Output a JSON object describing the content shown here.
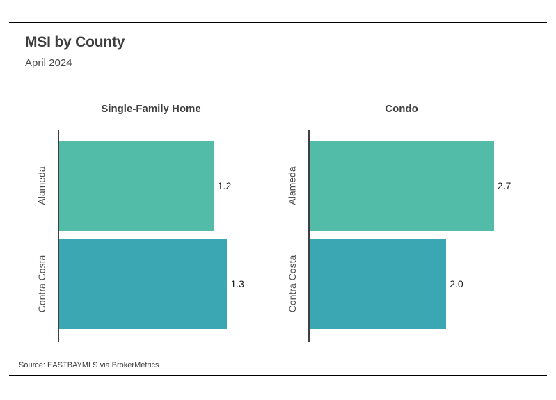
{
  "page": {
    "title": "MSI by County",
    "subtitle": "April 2024",
    "source": "Source:  EASTBAYMLS via BrokerMetrics"
  },
  "colors": {
    "bar_alameda": "#52bca8",
    "bar_contra_costa": "#3ba7b3",
    "axis_line": "#3f3f3f",
    "rule_line": "#000000",
    "title_text": "#3d3d3d",
    "value_text": "#1a1a1a"
  },
  "chart_data": {
    "type": "bar",
    "orientation": "horizontal",
    "title": "MSI by County",
    "subtitle": "April 2024",
    "categories": [
      "Alameda",
      "Contra Costa"
    ],
    "panels": [
      {
        "label": "Single-Family Home",
        "values": [
          1.2,
          1.3
        ],
        "value_labels": [
          "1.2",
          "1.3"
        ],
        "xlim": [
          0,
          1.68
        ]
      },
      {
        "label": "Condo",
        "values": [
          2.7,
          2.0
        ],
        "value_labels": [
          "2.7",
          "2.0"
        ],
        "xlim": [
          0,
          3.18
        ]
      }
    ],
    "bar_colors": [
      "#52bca8",
      "#3ba7b3"
    ],
    "grid": false,
    "legend": "none",
    "value_labels_shown": true,
    "source": "Source:  EASTBAYMLS via BrokerMetrics"
  }
}
